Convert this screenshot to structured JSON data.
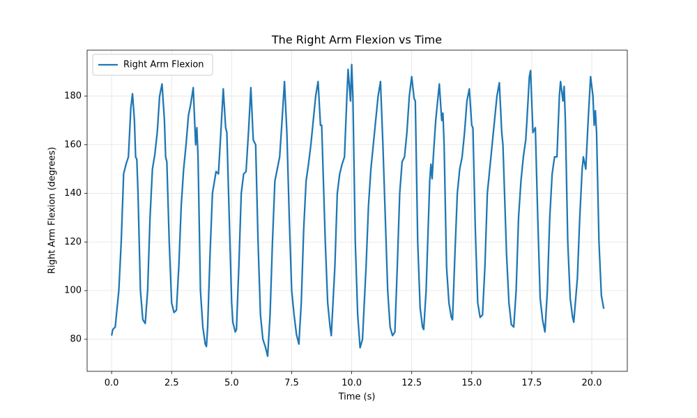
{
  "chart_data": {
    "type": "line",
    "title": "The Right Arm Flexion vs Time",
    "x_label": "Time (s)",
    "y_label": "Right Arm Flexion (degrees)",
    "x": [
      0,
      0.05,
      0.15,
      0.3,
      0.4,
      0.5,
      0.6,
      0.7,
      0.8,
      0.87,
      0.95,
      1.0,
      1.05,
      1.1,
      1.2,
      1.3,
      1.4,
      1.5,
      1.6,
      1.7,
      1.8,
      1.9,
      2.0,
      2.1,
      2.2,
      2.25,
      2.3,
      2.4,
      2.5,
      2.6,
      2.7,
      2.8,
      2.9,
      3.0,
      3.1,
      3.2,
      3.3,
      3.4,
      3.5,
      3.55,
      3.6,
      3.7,
      3.8,
      3.9,
      3.95,
      4.0,
      4.1,
      4.2,
      4.35,
      4.45,
      4.55,
      4.65,
      4.75,
      4.8,
      4.9,
      5.0,
      5.05,
      5.15,
      5.2,
      5.3,
      5.4,
      5.5,
      5.6,
      5.7,
      5.8,
      5.9,
      6.0,
      6.1,
      6.2,
      6.3,
      6.4,
      6.5,
      6.6,
      6.7,
      6.8,
      6.9,
      7.0,
      7.1,
      7.2,
      7.3,
      7.4,
      7.5,
      7.6,
      7.7,
      7.8,
      7.9,
      8.0,
      8.1,
      8.2,
      8.3,
      8.4,
      8.5,
      8.6,
      8.7,
      8.75,
      8.9,
      9.0,
      9.1,
      9.15,
      9.3,
      9.4,
      9.5,
      9.6,
      9.7,
      9.8,
      9.85,
      9.95,
      10.0,
      10.05,
      10.15,
      10.25,
      10.35,
      10.45,
      10.6,
      10.7,
      10.8,
      10.9,
      11.0,
      11.1,
      11.2,
      11.3,
      11.4,
      11.5,
      11.6,
      11.7,
      11.8,
      11.9,
      12.0,
      12.1,
      12.2,
      12.3,
      12.4,
      12.5,
      12.6,
      12.65,
      12.75,
      12.85,
      12.95,
      13.0,
      13.1,
      13.2,
      13.25,
      13.3,
      13.35,
      13.4,
      13.5,
      13.6,
      13.65,
      13.75,
      13.8,
      13.85,
      13.95,
      14.05,
      14.15,
      14.2,
      14.3,
      14.4,
      14.5,
      14.6,
      14.7,
      14.8,
      14.9,
      15.0,
      15.05,
      15.15,
      15.25,
      15.35,
      15.45,
      15.55,
      15.65,
      15.75,
      15.85,
      15.95,
      16.05,
      16.15,
      16.25,
      16.3,
      16.45,
      16.55,
      16.65,
      16.75,
      16.85,
      16.95,
      17.05,
      17.15,
      17.25,
      17.3,
      17.4,
      17.45,
      17.55,
      17.65,
      17.75,
      17.85,
      17.95,
      18.05,
      18.15,
      18.25,
      18.35,
      18.45,
      18.55,
      18.65,
      18.7,
      18.8,
      18.85,
      18.9,
      19.0,
      19.1,
      19.2,
      19.25,
      19.4,
      19.5,
      19.6,
      19.65,
      19.75,
      19.85,
      19.95,
      20.05,
      20.1,
      20.15,
      20.2,
      20.3,
      20.4,
      20.5
    ],
    "series": [
      {
        "name": "Right Arm Flexion",
        "color": "#1f77b4",
        "values": [
          81.5,
          84,
          85,
          100,
          120,
          148,
          152,
          155,
          175,
          181,
          170,
          155,
          154,
          140,
          100,
          88,
          86.5,
          100,
          130,
          150,
          156,
          165,
          180,
          185,
          170,
          155,
          153,
          120,
          95,
          91,
          92,
          110,
          135,
          150,
          160,
          172,
          177,
          183.5,
          160,
          167,
          155,
          100,
          85,
          78,
          77,
          85,
          115,
          140,
          149,
          148,
          165,
          183,
          167,
          165,
          130,
          95,
          87,
          83,
          84,
          110,
          140,
          148,
          149,
          165,
          183.5,
          162,
          160,
          120,
          90,
          80,
          77,
          73,
          90,
          120,
          145,
          150,
          155,
          170,
          186,
          165,
          130,
          100,
          90,
          82,
          78,
          95,
          125,
          145,
          152,
          160,
          170,
          180,
          186,
          168,
          168,
          120,
          95,
          85,
          81.5,
          110,
          140,
          148,
          152,
          155,
          180,
          191,
          178,
          193,
          180,
          120,
          90,
          76.5,
          80,
          110,
          135,
          150,
          160,
          170,
          180,
          186,
          160,
          130,
          100,
          85,
          81.5,
          83,
          110,
          140,
          153,
          155,
          165,
          180,
          188,
          179,
          178,
          120,
          93,
          85,
          84,
          100,
          130,
          145,
          152,
          146,
          155,
          170,
          180,
          185,
          170,
          173,
          160,
          110,
          95,
          89,
          88,
          115,
          140,
          150,
          155,
          165,
          178,
          183,
          168,
          167,
          125,
          95,
          89,
          90,
          110,
          140,
          150,
          160,
          170,
          180,
          185.5,
          165,
          160,
          115,
          95,
          86,
          85,
          100,
          130,
          145,
          155,
          162,
          170,
          188,
          190.5,
          165,
          167,
          130,
          97,
          88,
          83,
          100,
          130,
          148,
          155,
          155,
          180,
          186,
          178,
          184,
          170,
          120,
          97,
          89,
          87,
          105,
          130,
          150,
          155,
          150,
          170,
          188,
          180,
          168,
          174,
          165,
          120,
          98,
          92.5
        ]
      }
    ],
    "xlim": [
      -1.02,
      21.48
    ],
    "ylim": [
      66.8,
      198.9
    ],
    "xticks": [
      {
        "value": 0,
        "label": "0.0"
      },
      2.5,
      {
        "value": 5,
        "label": "5.0"
      },
      7.5,
      {
        "value": 10,
        "label": "10.0"
      },
      12.5,
      {
        "value": 15,
        "label": "15.0"
      },
      17.5,
      {
        "value": 20,
        "label": "20.0"
      }
    ],
    "yticks": [
      80,
      100,
      120,
      140,
      160,
      180
    ],
    "grid": true,
    "legend": "upper left"
  }
}
